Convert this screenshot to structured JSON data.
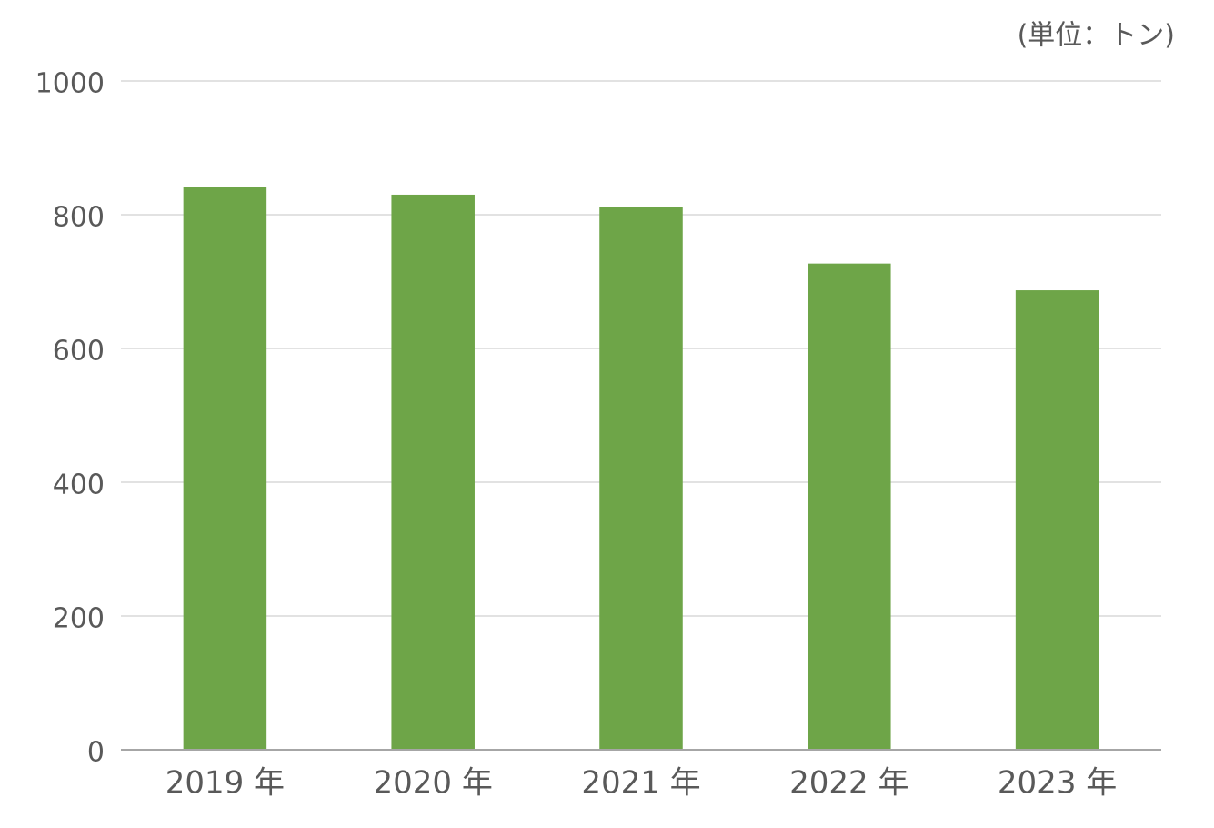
{
  "chart_data": {
    "type": "bar",
    "unit_label": "(単位：トン)",
    "categories": [
      "2019 年",
      "2020 年",
      "2021 年",
      "2022 年",
      "2023 年"
    ],
    "values": [
      842,
      830,
      811,
      727,
      687
    ],
    "color": "#6ea548",
    "ylim": [
      0,
      1000
    ],
    "yticks": [
      0,
      200,
      400,
      600,
      800,
      1000
    ],
    "grid": true
  }
}
